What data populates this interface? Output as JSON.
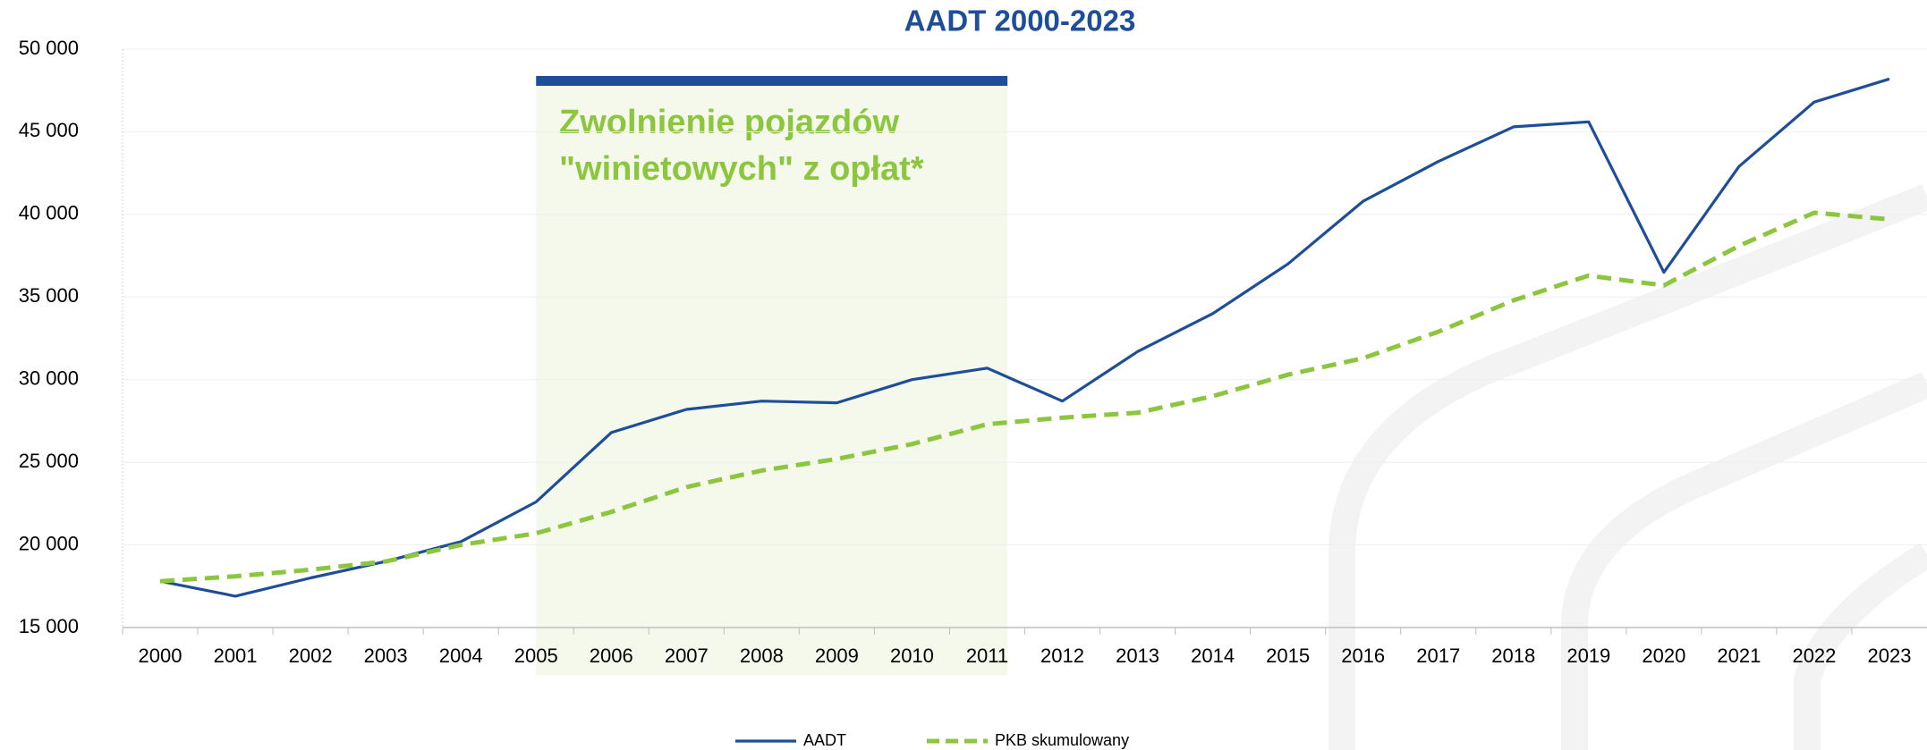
{
  "chart_data": {
    "type": "line",
    "title": "AADT 2000-2023",
    "categories": [
      "2000",
      "2001",
      "2002",
      "2003",
      "2004",
      "2005",
      "2006",
      "2007",
      "2008",
      "2009",
      "2010",
      "2011",
      "2012",
      "2013",
      "2014",
      "2015",
      "2016",
      "2017",
      "2018",
      "2019",
      "2020",
      "2021",
      "2022",
      "2023"
    ],
    "series": [
      {
        "name": "AADT",
        "color": "#1f4e99",
        "dash": false,
        "values": [
          17800,
          16900,
          18000,
          19000,
          20200,
          22600,
          26800,
          28200,
          28700,
          28600,
          30000,
          30700,
          28700,
          31700,
          34000,
          37000,
          40800,
          43200,
          45300,
          45600,
          36500,
          42900,
          46800,
          48200
        ]
      },
      {
        "name": "PKB skumulowany",
        "color": "#8cc63f",
        "dash": true,
        "values": [
          17800,
          18100,
          18500,
          19000,
          20000,
          20700,
          22000,
          23500,
          24500,
          25200,
          26100,
          27300,
          27700,
          28000,
          29000,
          30300,
          31300,
          32900,
          34800,
          36300,
          35700,
          38100,
          40100,
          39700
        ]
      }
    ],
    "annotation": [
      "Zwolnienie pojazdów",
      "\"winietowych\" z opłat*"
    ],
    "ylim": [
      15000,
      50000
    ],
    "yticks": [
      {
        "value": 15000,
        "label": "15 000"
      },
      {
        "value": 20000,
        "label": "20 000"
      },
      {
        "value": 25000,
        "label": "25 000"
      },
      {
        "value": 30000,
        "label": "30 000"
      },
      {
        "value": 35000,
        "label": "35 000"
      },
      {
        "value": 40000,
        "label": "40 000"
      },
      {
        "value": 45000,
        "label": "45 000"
      },
      {
        "value": 50000,
        "label": "50 000"
      }
    ],
    "grid": true,
    "legend": "bottom"
  }
}
